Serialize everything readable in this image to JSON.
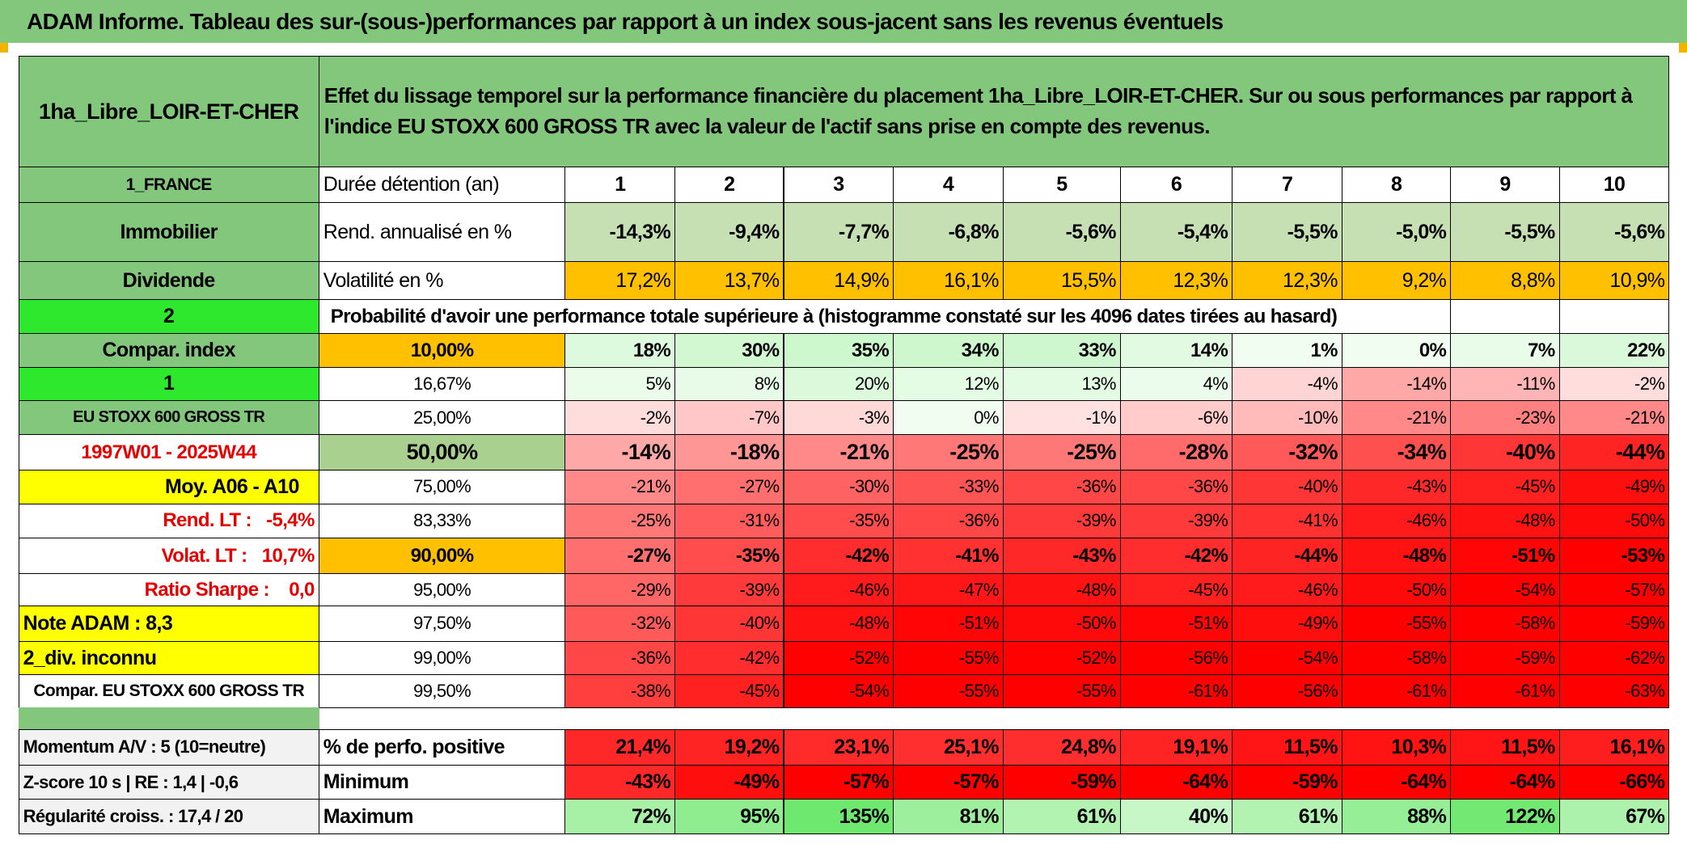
{
  "title": "ADAM Informe. Tableau des sur-(sous-)performances par rapport à un index sous-jacent sans les revenus éventuels",
  "fund": "1ha_Libre_LOIR-ET-CHER",
  "description": "Effet du lissage temporel sur la performance financière du placement 1ha_Libre_LOIR-ET-CHER. Sur ou sous performances par rapport à l'indice EU STOXX 600 GROSS TR avec la valeur de l'actif sans prise en compte des revenus.",
  "left": [
    "1_FRANCE",
    "Immobilier",
    "Dividende",
    "2",
    "Compar. index",
    "1",
    "EU STOXX 600 GROSS TR",
    "1997W01 - 2025W44",
    "Moy. A06 - A10",
    "Rend. LT :   -5,4%",
    "Volat. LT :   10,7%",
    "Ratio Sharpe :    0,0",
    "Note ADAM : 8,3",
    "2_div. inconnu",
    "Compar. EU STOXX 600 GROSS TR"
  ],
  "durations": {
    "label": "Durée détention (an)",
    "values": [
      "1",
      "2",
      "3",
      "4",
      "5",
      "6",
      "7",
      "8",
      "9",
      "10"
    ]
  },
  "return": {
    "label": "Rend. annualisé en %",
    "values": [
      "-14,3%",
      "-9,4%",
      "-7,7%",
      "-6,8%",
      "-5,6%",
      "-5,4%",
      "-5,5%",
      "-5,0%",
      "-5,5%",
      "-5,6%"
    ]
  },
  "volatility": {
    "label": "Volatilité en %",
    "values": [
      "17,2%",
      "13,7%",
      "14,9%",
      "16,1%",
      "15,5%",
      "12,3%",
      "12,3%",
      "9,2%",
      "8,8%",
      "10,9%"
    ]
  },
  "probability_title": "Probabilité d'avoir une performance totale supérieure à (histogramme constaté sur les 4096 dates tirées au hasard)",
  "quantiles": [
    {
      "label": "10,00%",
      "values": [
        "18%",
        "30%",
        "35%",
        "34%",
        "33%",
        "14%",
        "1%",
        "0%",
        "7%",
        "22%"
      ]
    },
    {
      "label": "16,67%",
      "values": [
        "5%",
        "8%",
        "20%",
        "12%",
        "13%",
        "4%",
        "-4%",
        "-14%",
        "-11%",
        "-2%"
      ]
    },
    {
      "label": "25,00%",
      "values": [
        "-2%",
        "-7%",
        "-3%",
        "0%",
        "-1%",
        "-6%",
        "-10%",
        "-21%",
        "-23%",
        "-21%"
      ]
    },
    {
      "label": "50,00%",
      "values": [
        "-14%",
        "-18%",
        "-21%",
        "-25%",
        "-25%",
        "-28%",
        "-32%",
        "-34%",
        "-40%",
        "-44%"
      ]
    },
    {
      "label": "75,00%",
      "values": [
        "-21%",
        "-27%",
        "-30%",
        "-33%",
        "-36%",
        "-36%",
        "-40%",
        "-43%",
        "-45%",
        "-49%"
      ]
    },
    {
      "label": "83,33%",
      "values": [
        "-25%",
        "-31%",
        "-35%",
        "-36%",
        "-39%",
        "-39%",
        "-41%",
        "-46%",
        "-48%",
        "-50%"
      ]
    },
    {
      "label": "90,00%",
      "values": [
        "-27%",
        "-35%",
        "-42%",
        "-41%",
        "-43%",
        "-42%",
        "-44%",
        "-48%",
        "-51%",
        "-53%"
      ]
    },
    {
      "label": "95,00%",
      "values": [
        "-29%",
        "-39%",
        "-46%",
        "-47%",
        "-48%",
        "-45%",
        "-46%",
        "-50%",
        "-54%",
        "-57%"
      ]
    },
    {
      "label": "97,50%",
      "values": [
        "-32%",
        "-40%",
        "-48%",
        "-51%",
        "-50%",
        "-51%",
        "-49%",
        "-55%",
        "-58%",
        "-59%"
      ]
    },
    {
      "label": "99,00%",
      "values": [
        "-36%",
        "-42%",
        "-52%",
        "-55%",
        "-52%",
        "-56%",
        "-54%",
        "-58%",
        "-59%",
        "-62%"
      ]
    },
    {
      "label": "99,50%",
      "values": [
        "-38%",
        "-45%",
        "-54%",
        "-55%",
        "-55%",
        "-61%",
        "-56%",
        "-61%",
        "-61%",
        "-63%"
      ]
    }
  ],
  "footer_left": [
    "Momentum A/V : 5 (10=neutre)",
    "Z-score 10 s | RE : 1,4 | -0,6",
    "Régularité croiss. : 17,4 / 20"
  ],
  "stats": [
    {
      "label": "% de perfo. positive",
      "values": [
        "21,4%",
        "19,2%",
        "23,1%",
        "25,1%",
        "24,8%",
        "19,1%",
        "11,5%",
        "10,3%",
        "11,5%",
        "16,1%"
      ]
    },
    {
      "label": "Minimum",
      "values": [
        "-43%",
        "-49%",
        "-57%",
        "-57%",
        "-59%",
        "-64%",
        "-59%",
        "-64%",
        "-64%",
        "-66%"
      ]
    },
    {
      "label": "Maximum",
      "values": [
        "72%",
        "95%",
        "135%",
        "81%",
        "61%",
        "40%",
        "61%",
        "88%",
        "122%",
        "67%"
      ]
    }
  ]
}
